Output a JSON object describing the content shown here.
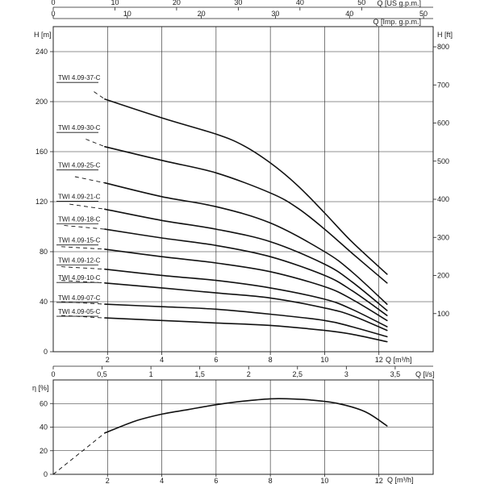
{
  "chart_data": [
    {
      "type": "line",
      "panel": "head",
      "title": "",
      "xlabel": "Q [m³/h]",
      "ylabel": "H [m]",
      "y2label": "H [ft]",
      "xlim": [
        0,
        14
      ],
      "ylim": [
        0,
        260
      ],
      "y2lim": [
        0,
        853
      ],
      "x_ticks": [
        2,
        4,
        6,
        8,
        10,
        12
      ],
      "y_ticks": [
        0,
        40,
        80,
        120,
        160,
        200,
        240
      ],
      "y2_ticks": [
        100,
        200,
        300,
        400,
        500,
        600,
        700,
        800
      ],
      "grid": true,
      "top_axes": [
        {
          "label": "Q [US g.p.m.]",
          "ticks": [
            0,
            10,
            20,
            30,
            40,
            50
          ],
          "max": 61.6
        },
        {
          "label": "Q [Imp. g.p.m.]",
          "ticks": [
            0,
            10,
            20,
            30,
            40,
            50
          ],
          "max": 51.3
        }
      ],
      "series": [
        {
          "name": "TWI 4.09-37-C",
          "label_y": 216,
          "x": [
            1.9,
            4,
            6,
            7,
            8,
            9,
            10,
            11,
            12.3
          ],
          "y": [
            202,
            187,
            174,
            165,
            151,
            133,
            111,
            88,
            62
          ],
          "dash_start": [
            1.5,
            208
          ]
        },
        {
          "name": "TWI 4.09-30-C",
          "label_y": 176,
          "x": [
            1.9,
            4,
            6,
            8,
            9,
            10,
            11,
            12.3
          ],
          "y": [
            164,
            153,
            143,
            127,
            115,
            98,
            79,
            55
          ],
          "dash_start": [
            1.2,
            170
          ]
        },
        {
          "name": "TWI 4.09-25-C",
          "label_y": 146,
          "x": [
            1.9,
            4,
            6,
            8,
            10,
            11,
            12.3
          ],
          "y": [
            135,
            124,
            116,
            103,
            80,
            64,
            38
          ],
          "dash_start": [
            0.8,
            140
          ]
        },
        {
          "name": "TWI 4.09-21-C",
          "label_y": 121,
          "x": [
            1.9,
            4,
            6,
            8,
            10,
            11,
            12.3
          ],
          "y": [
            114,
            105,
            98,
            88,
            70,
            56,
            33
          ],
          "dash_start": [
            0.6,
            118
          ]
        },
        {
          "name": "TWI 4.09-18-C",
          "label_y": 103,
          "x": [
            1.9,
            4,
            6,
            8,
            10,
            11,
            12.3
          ],
          "y": [
            98,
            91,
            85,
            76,
            61,
            49,
            29
          ],
          "dash_start": [
            0.4,
            101
          ]
        },
        {
          "name": "TWI 4.09-15-C",
          "label_y": 86,
          "x": [
            1.9,
            4,
            6,
            8,
            10,
            11,
            12.3
          ],
          "y": [
            82,
            76,
            71,
            64,
            52,
            42,
            25
          ],
          "dash_start": [
            0.3,
            84
          ]
        },
        {
          "name": "TWI 4.09-12-C",
          "label_y": 70,
          "x": [
            1.9,
            4,
            6,
            8,
            10,
            11,
            12.3
          ],
          "y": [
            66,
            61,
            57,
            51,
            42,
            34,
            20
          ],
          "dash_start": [
            0.3,
            68
          ]
        },
        {
          "name": "TWI 4.09-10-C",
          "label_y": 56,
          "x": [
            1.9,
            4,
            6,
            8,
            10,
            11,
            12.3
          ],
          "y": [
            55,
            51,
            47,
            43,
            35,
            29,
            17
          ],
          "dash_start": [
            0.3,
            57
          ]
        },
        {
          "name": "TWI 4.09-07-C",
          "label_y": 40,
          "x": [
            1.9,
            4,
            6,
            8,
            10,
            11,
            12.3
          ],
          "y": [
            38,
            36,
            34,
            30,
            25,
            20,
            12
          ],
          "dash_start": [
            0.3,
            40
          ]
        },
        {
          "name": "TWI 4.09-05-C",
          "label_y": 29,
          "x": [
            1.9,
            4,
            6,
            8,
            10,
            11,
            12.3
          ],
          "y": [
            27,
            25,
            23,
            21,
            17,
            14,
            8
          ],
          "dash_start": [
            0.3,
            29
          ]
        }
      ]
    },
    {
      "type": "line",
      "panel": "efficiency",
      "title": "",
      "xlabel": "Q [m³/h]",
      "ylabel": "η [%]",
      "xlim": [
        0,
        14
      ],
      "ylim": [
        0,
        80
      ],
      "x_ticks": [
        0,
        2,
        4,
        6,
        8,
        10,
        12
      ],
      "y_ticks": [
        0,
        20,
        40,
        60
      ],
      "grid": true,
      "top_axis": {
        "label": "Q [l/s]",
        "ticks": [
          "0",
          "0,5",
          "1",
          "1,5",
          "2",
          "2,5",
          "3",
          "3,5"
        ],
        "values": [
          0,
          0.5,
          1,
          1.5,
          2,
          2.5,
          3,
          3.5
        ],
        "max": 3.889
      },
      "series": [
        {
          "name": "",
          "x": [
            1.9,
            3,
            4,
            5,
            6,
            7,
            8,
            8.7,
            9.5,
            10.5,
            11.5,
            12.3
          ],
          "y": [
            35,
            45,
            51,
            55,
            59,
            62,
            64,
            64,
            63,
            60,
            53,
            41
          ],
          "dash_start": [
            0,
            0
          ]
        }
      ]
    }
  ]
}
